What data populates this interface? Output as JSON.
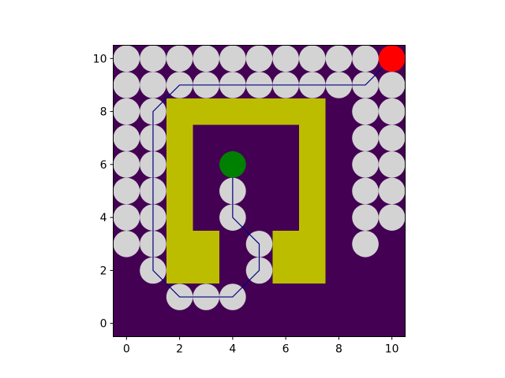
{
  "chart_data": {
    "type": "heatmap",
    "title": "",
    "xlabel": "",
    "ylabel": "",
    "xlim": [
      -0.5,
      10.5
    ],
    "ylim": [
      -0.5,
      10.5
    ],
    "xticks": [
      0,
      2,
      4,
      6,
      8,
      10
    ],
    "yticks": [
      0,
      2,
      4,
      6,
      8,
      10
    ],
    "grid": false,
    "colors": {
      "background": "#440154",
      "obstacle": "#bdbd00",
      "visited": "#d3d3d3",
      "path": "#000080",
      "start": "#008000",
      "goal": "#ff0000"
    },
    "obstacle_cells": [
      [
        2,
        2
      ],
      [
        3,
        2
      ],
      [
        6,
        2
      ],
      [
        7,
        2
      ],
      [
        2,
        3
      ],
      [
        3,
        3
      ],
      [
        6,
        3
      ],
      [
        7,
        3
      ],
      [
        2,
        4
      ],
      [
        7,
        4
      ],
      [
        2,
        5
      ],
      [
        7,
        5
      ],
      [
        2,
        6
      ],
      [
        7,
        6
      ],
      [
        2,
        7
      ],
      [
        7,
        7
      ],
      [
        2,
        8
      ],
      [
        3,
        8
      ],
      [
        4,
        8
      ],
      [
        5,
        8
      ],
      [
        6,
        8
      ],
      [
        7,
        8
      ]
    ],
    "visited_nodes": [
      [
        0,
        10
      ],
      [
        1,
        10
      ],
      [
        2,
        10
      ],
      [
        3,
        10
      ],
      [
        4,
        10
      ],
      [
        5,
        10
      ],
      [
        6,
        10
      ],
      [
        7,
        10
      ],
      [
        8,
        10
      ],
      [
        9,
        10
      ],
      [
        0,
        9
      ],
      [
        1,
        9
      ],
      [
        2,
        9
      ],
      [
        3,
        9
      ],
      [
        4,
        9
      ],
      [
        5,
        9
      ],
      [
        6,
        9
      ],
      [
        7,
        9
      ],
      [
        8,
        9
      ],
      [
        9,
        9
      ],
      [
        10,
        9
      ],
      [
        0,
        8
      ],
      [
        1,
        8
      ],
      [
        9,
        8
      ],
      [
        10,
        8
      ],
      [
        0,
        7
      ],
      [
        1,
        7
      ],
      [
        9,
        7
      ],
      [
        10,
        7
      ],
      [
        0,
        6
      ],
      [
        1,
        6
      ],
      [
        9,
        6
      ],
      [
        10,
        6
      ],
      [
        0,
        5
      ],
      [
        1,
        5
      ],
      [
        4,
        5
      ],
      [
        9,
        5
      ],
      [
        10,
        5
      ],
      [
        0,
        4
      ],
      [
        1,
        4
      ],
      [
        4,
        4
      ],
      [
        9,
        4
      ],
      [
        10,
        4
      ],
      [
        0,
        3
      ],
      [
        1,
        3
      ],
      [
        5,
        3
      ],
      [
        9,
        3
      ],
      [
        1,
        2
      ],
      [
        5,
        2
      ],
      [
        2,
        1
      ],
      [
        3,
        1
      ],
      [
        4,
        1
      ]
    ],
    "path": [
      [
        4,
        6
      ],
      [
        4,
        4
      ],
      [
        5,
        3
      ],
      [
        5,
        2
      ],
      [
        4,
        1
      ],
      [
        2,
        1
      ],
      [
        1,
        2
      ],
      [
        1,
        8
      ],
      [
        2,
        9
      ],
      [
        9,
        9
      ],
      [
        10,
        10
      ]
    ],
    "start": [
      4,
      6
    ],
    "goal": [
      10,
      10
    ]
  }
}
